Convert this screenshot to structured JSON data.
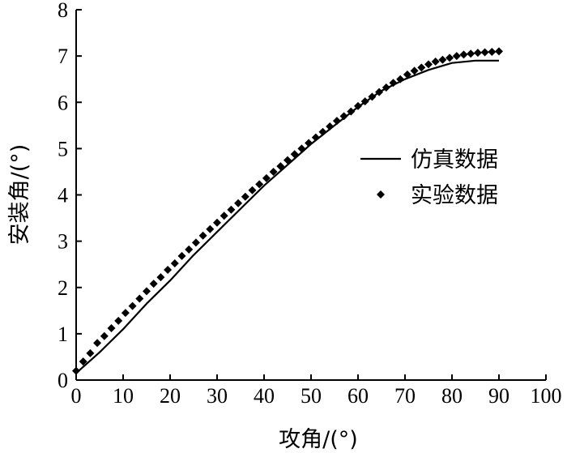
{
  "chart_data": {
    "type": "line",
    "xlabel": "攻角/(°)",
    "ylabel": "安装角/(°)",
    "xlim": [
      0,
      100
    ],
    "ylim": [
      0,
      8
    ],
    "xticks": [
      "0",
      "10",
      "20",
      "30",
      "40",
      "50",
      "60",
      "70",
      "80",
      "90",
      "100"
    ],
    "yticks": [
      "0",
      "1",
      "2",
      "3",
      "4",
      "5",
      "6",
      "7",
      "8"
    ],
    "grid": false,
    "legend_position": "right",
    "series": [
      {
        "name": "仿真数据",
        "style": "line",
        "color": "#000000",
        "x": [
          0,
          5,
          10,
          15,
          20,
          25,
          30,
          35,
          40,
          45,
          50,
          55,
          60,
          65,
          70,
          75,
          80,
          85,
          90
        ],
        "y": [
          0.15,
          0.6,
          1.1,
          1.65,
          2.15,
          2.7,
          3.2,
          3.7,
          4.2,
          4.65,
          5.1,
          5.5,
          5.9,
          6.25,
          6.5,
          6.7,
          6.85,
          6.9,
          6.9
        ]
      },
      {
        "name": "实验数据",
        "style": "marker",
        "color": "#000000",
        "x": [
          0,
          1.5,
          3,
          4.5,
          6,
          7.5,
          9,
          10.5,
          12,
          13.5,
          15,
          16.5,
          18,
          19.5,
          21,
          22.5,
          24,
          25.5,
          27,
          28.5,
          30,
          31.5,
          33,
          34.5,
          36,
          37.5,
          39,
          40.5,
          42,
          43.5,
          45,
          46.5,
          48,
          49.5,
          51,
          52.5,
          54,
          55.5,
          57,
          58.5,
          60,
          61.5,
          63,
          64.5,
          66,
          67.5,
          69,
          70.5,
          72,
          73.5,
          75,
          76.5,
          78,
          79.5,
          81,
          82.5,
          84,
          85.5,
          87,
          88.5,
          90
        ],
        "y": [
          0.2,
          0.4,
          0.58,
          0.8,
          0.95,
          1.12,
          1.28,
          1.45,
          1.6,
          1.76,
          1.92,
          2.08,
          2.22,
          2.38,
          2.52,
          2.68,
          2.82,
          2.97,
          3.12,
          3.26,
          3.4,
          3.55,
          3.68,
          3.82,
          3.96,
          4.1,
          4.23,
          4.36,
          4.5,
          4.62,
          4.75,
          4.88,
          5.0,
          5.12,
          5.24,
          5.36,
          5.48,
          5.6,
          5.7,
          5.8,
          5.92,
          6.02,
          6.12,
          6.22,
          6.32,
          6.42,
          6.5,
          6.6,
          6.68,
          6.75,
          6.82,
          6.88,
          6.92,
          6.96,
          7.0,
          7.03,
          7.05,
          7.07,
          7.08,
          7.09,
          7.1
        ]
      }
    ]
  }
}
